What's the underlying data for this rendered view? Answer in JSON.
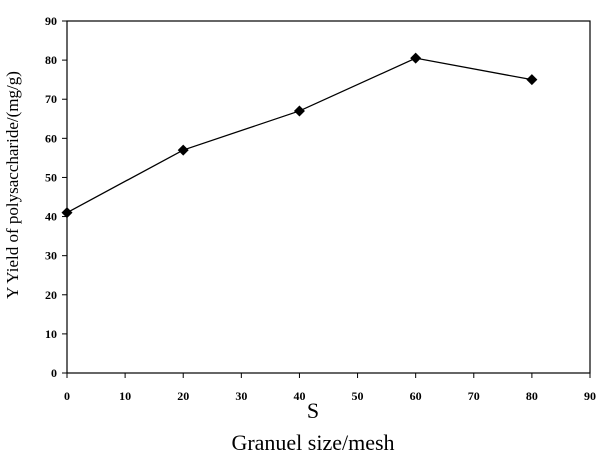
{
  "chart_data": {
    "type": "line",
    "y_label": "Y Yield of polysaccharide/(mg/g)",
    "x_symbol": "S",
    "x_label": "Granuel size/mesh",
    "x": [
      0,
      20,
      40,
      60,
      80
    ],
    "series": [
      {
        "color": "#000000",
        "values": [
          41,
          57,
          67,
          80.5,
          75
        ]
      }
    ],
    "xlim": [
      0,
      90
    ],
    "xticks": [
      0,
      10,
      20,
      30,
      40,
      50,
      60,
      70,
      80,
      90
    ],
    "ylim": [
      0,
      90
    ],
    "yticks": [
      0,
      10,
      20,
      30,
      40,
      50,
      60,
      70,
      80,
      90
    ],
    "marker": "diamond"
  }
}
